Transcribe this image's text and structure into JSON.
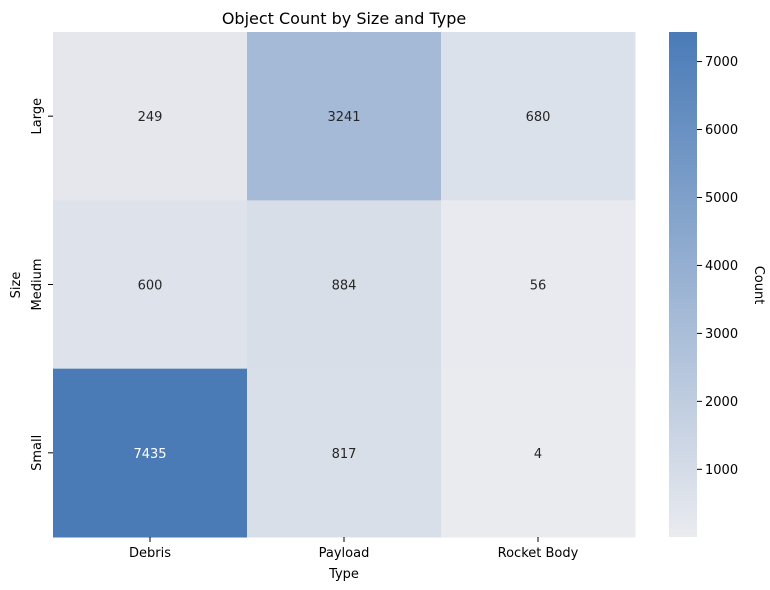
{
  "chart_data": {
    "type": "heatmap",
    "title": "Object Count by Size and Type",
    "xlabel": "Type",
    "ylabel": "Size",
    "x_categories": [
      "Debris",
      "Payload",
      "Rocket Body"
    ],
    "y_categories": [
      "Large",
      "Medium",
      "Small"
    ],
    "values": [
      [
        249,
        3241,
        680
      ],
      [
        600,
        884,
        56
      ],
      [
        7435,
        817,
        4
      ]
    ],
    "colorbar": {
      "label": "Count",
      "ticks": [
        1000,
        2000,
        3000,
        4000,
        5000,
        6000,
        7000
      ],
      "range": [
        4,
        7435
      ],
      "color_low": "#eaebef",
      "color_high": "#4a7bb7"
    },
    "grid": false,
    "annotations": true
  }
}
